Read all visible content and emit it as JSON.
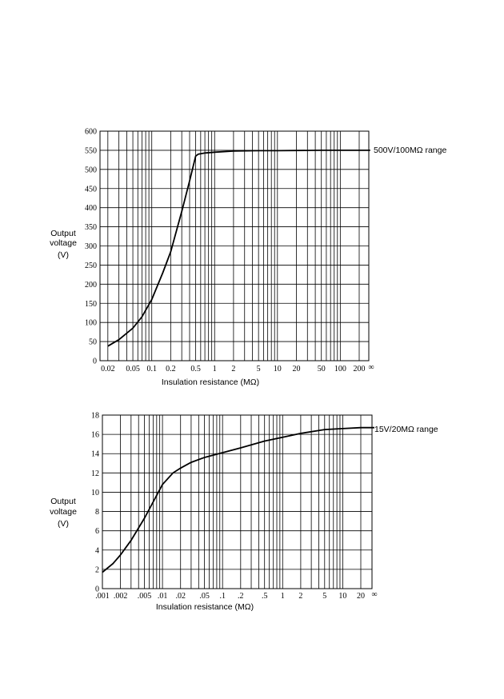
{
  "chart_data": [
    {
      "type": "line",
      "scale_x": "log",
      "xlabel": "Insulation resistance (MΩ)",
      "ylabel_lines": [
        "Output",
        "voltage",
        "(V)"
      ],
      "range_note": "500V/100MΩ range",
      "xlim": [
        0.015,
        300
      ],
      "ylim": [
        0,
        600
      ],
      "y_ticks": [
        0,
        50,
        100,
        150,
        200,
        250,
        300,
        350,
        400,
        450,
        500,
        550,
        600
      ],
      "x_tick_labels": [
        {
          "value": 0.02,
          "label": "0.02"
        },
        {
          "value": 0.05,
          "label": "0.05"
        },
        {
          "value": 0.1,
          "label": "0.1"
        },
        {
          "value": 0.2,
          "label": "0.2"
        },
        {
          "value": 0.5,
          "label": "0.5"
        },
        {
          "value": 1,
          "label": "1"
        },
        {
          "value": 2,
          "label": "2"
        },
        {
          "value": 5,
          "label": "5"
        },
        {
          "value": 10,
          "label": "10"
        },
        {
          "value": 20,
          "label": "20"
        },
        {
          "value": 50,
          "label": "50"
        },
        {
          "value": 100,
          "label": "100"
        },
        {
          "value": 200,
          "label": "200"
        }
      ],
      "infinity_label": "∞",
      "grid_x": [
        0.02,
        0.03,
        0.04,
        0.05,
        0.06,
        0.07,
        0.08,
        0.09,
        0.1,
        0.2,
        0.3,
        0.4,
        0.5,
        0.6,
        0.7,
        0.8,
        0.9,
        1,
        2,
        3,
        4,
        5,
        6,
        7,
        8,
        9,
        10,
        20,
        30,
        40,
        50,
        60,
        70,
        80,
        90,
        100,
        200
      ],
      "series": [
        {
          "x": [
            0.02,
            0.03,
            0.05,
            0.07,
            0.1,
            0.15,
            0.2,
            0.3,
            0.4,
            0.5,
            0.55,
            0.7,
            1,
            2,
            5,
            10,
            50,
            100,
            300
          ],
          "y": [
            38,
            55,
            85,
            115,
            160,
            230,
            285,
            390,
            470,
            535,
            540,
            543,
            545,
            548,
            549,
            549,
            550,
            550,
            550
          ]
        }
      ]
    },
    {
      "type": "line",
      "scale_x": "log",
      "xlabel": "Insulation resistance (MΩ)",
      "ylabel_lines": [
        "Output",
        "voltage",
        "(V)"
      ],
      "range_note": "15V/20MΩ range",
      "xlim": [
        0.001,
        40
      ],
      "ylim": [
        0,
        18
      ],
      "y_ticks": [
        0,
        2,
        4,
        6,
        8,
        10,
        12,
        14,
        16,
        18
      ],
      "x_tick_labels": [
        {
          "value": 0.001,
          "label": ".001"
        },
        {
          "value": 0.002,
          "label": ".002"
        },
        {
          "value": 0.005,
          "label": ".005"
        },
        {
          "value": 0.01,
          "label": ".01"
        },
        {
          "value": 0.02,
          "label": ".02"
        },
        {
          "value": 0.05,
          "label": ".05"
        },
        {
          "value": 0.1,
          "label": ".1"
        },
        {
          "value": 0.2,
          "label": ".2"
        },
        {
          "value": 0.5,
          "label": ".5"
        },
        {
          "value": 1,
          "label": "1"
        },
        {
          "value": 2,
          "label": "2"
        },
        {
          "value": 5,
          "label": "5"
        },
        {
          "value": 10,
          "label": "10"
        },
        {
          "value": 20,
          "label": "20"
        }
      ],
      "infinity_label": "∞",
      "grid_x": [
        0.002,
        0.003,
        0.004,
        0.005,
        0.006,
        0.007,
        0.008,
        0.009,
        0.01,
        0.02,
        0.03,
        0.04,
        0.05,
        0.06,
        0.07,
        0.08,
        0.09,
        0.1,
        0.2,
        0.3,
        0.4,
        0.5,
        0.6,
        0.7,
        0.8,
        0.9,
        1,
        2,
        3,
        4,
        5,
        6,
        7,
        8,
        9,
        10,
        20
      ],
      "series": [
        {
          "x": [
            0.001,
            0.0015,
            0.002,
            0.003,
            0.005,
            0.007,
            0.01,
            0.015,
            0.02,
            0.03,
            0.05,
            0.1,
            0.2,
            0.5,
            1,
            2,
            5,
            10,
            20,
            40
          ],
          "y": [
            1.7,
            2.6,
            3.5,
            5.0,
            7.3,
            9.0,
            10.8,
            12.0,
            12.5,
            13.1,
            13.6,
            14.1,
            14.6,
            15.3,
            15.7,
            16.1,
            16.5,
            16.6,
            16.7,
            16.7
          ]
        }
      ]
    }
  ]
}
